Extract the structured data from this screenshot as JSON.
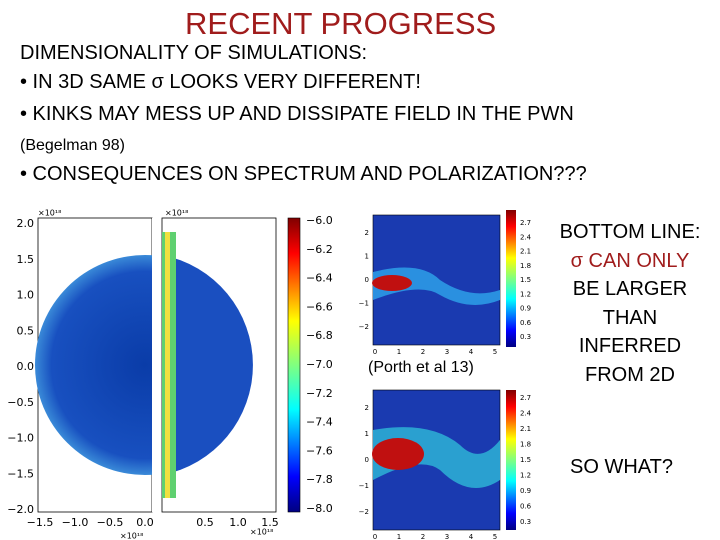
{
  "title": "RECENT PROGRESS",
  "lines": [
    "DIMENSIONALITY OF SIMULATIONS:",
    "• IN 3D SAME σ LOOKS VERY DIFFERENT!",
    "• KINKS MAY MESS UP AND DISSIPATE FIELD IN THE PWN",
    "(Begelman 98)",
    "• CONSEQUENCES ON SPECTRUM AND POLARIZATION???"
  ],
  "figure_3d": {
    "scale_labels": [
      "×10¹⁸",
      "×10¹⁸",
      "×10¹⁸",
      "×10¹⁸"
    ],
    "y_ticks": [
      "2.0",
      "1.5",
      "1.0",
      "0.5",
      "0.0",
      "−0.5",
      "−1.0",
      "−1.5",
      "−2.0"
    ],
    "x_ticks": [
      "−1.5",
      "−1.0",
      "−0.5",
      "0.0",
      "0.5",
      "1.0",
      "1.5"
    ],
    "colorbar_ticks": [
      "−6.0",
      "−6.2",
      "−6.4",
      "−6.6",
      "−6.8",
      "−7.0",
      "−7.2",
      "−7.4",
      "−7.6",
      "−7.8",
      "−8.0"
    ]
  },
  "figure_2d": {
    "y_ticks": [
      "2",
      "1",
      "0",
      "−1",
      "−2"
    ],
    "x_ticks": [
      "0",
      "1",
      "2",
      "3",
      "4",
      "5"
    ],
    "colorbar_ticks": [
      "2.7",
      "2.4",
      "2.1",
      "1.8",
      "1.5",
      "1.2",
      "0.9",
      "0.6",
      "0.3"
    ]
  },
  "caption": "(Porth et al 13)",
  "bottom_line": [
    "BOTTOM LINE:",
    "σ CAN ONLY",
    "BE LARGER",
    "THAN",
    "INFERRED",
    "FROM 2D"
  ],
  "closing": "SO WHAT?"
}
